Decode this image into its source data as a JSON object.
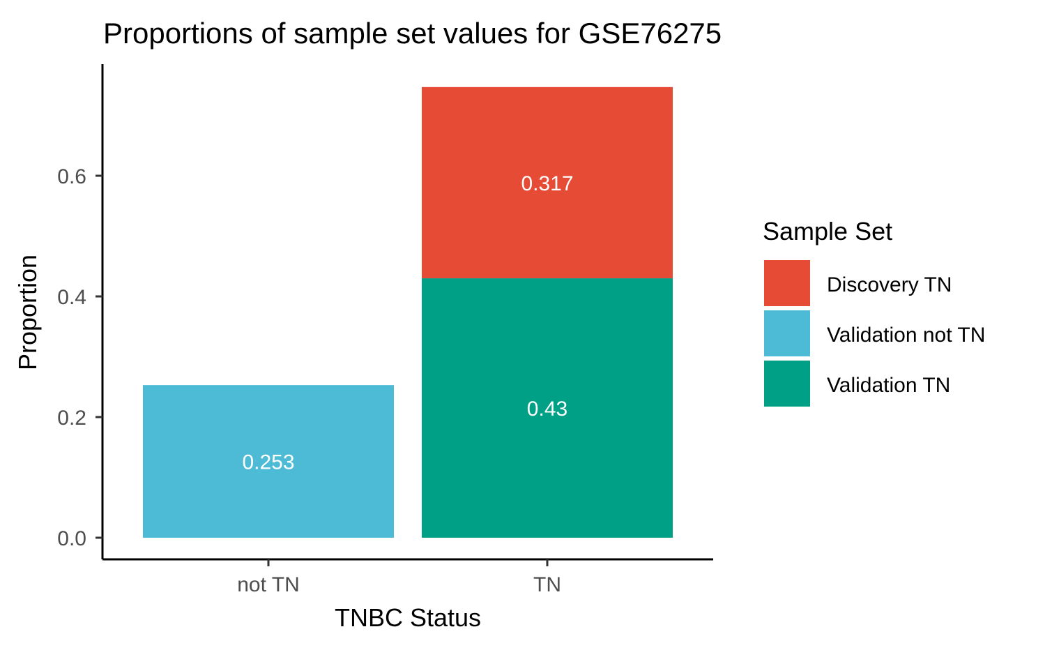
{
  "chart_data": {
    "type": "bar",
    "stacked": true,
    "title": "Proportions of sample set values for GSE76275",
    "xlabel": "TNBC Status",
    "ylabel": "Proportion",
    "categories": [
      "not TN",
      "TN"
    ],
    "ylim": [
      0,
      0.75
    ],
    "yticks": [
      "0.0",
      "0.2",
      "0.4",
      "0.6"
    ],
    "grid": false,
    "legend_position": "right",
    "legend_title": "Sample Set",
    "series": [
      {
        "name": "Validation TN",
        "color": "#00A087",
        "values": [
          0,
          0.43
        ]
      },
      {
        "name": "Validation not TN",
        "color": "#4DBBD5",
        "values": [
          0.253,
          0
        ]
      },
      {
        "name": "Discovery TN",
        "color": "#E64B35",
        "values": [
          0,
          0.317
        ]
      }
    ],
    "data_labels": [
      {
        "category": "not TN",
        "series": "Validation not TN",
        "text": "0.253"
      },
      {
        "category": "TN",
        "series": "Validation TN",
        "text": "0.43"
      },
      {
        "category": "TN",
        "series": "Discovery TN",
        "text": "0.317"
      }
    ],
    "legend_order": [
      "Discovery TN",
      "Validation not TN",
      "Validation TN"
    ]
  }
}
